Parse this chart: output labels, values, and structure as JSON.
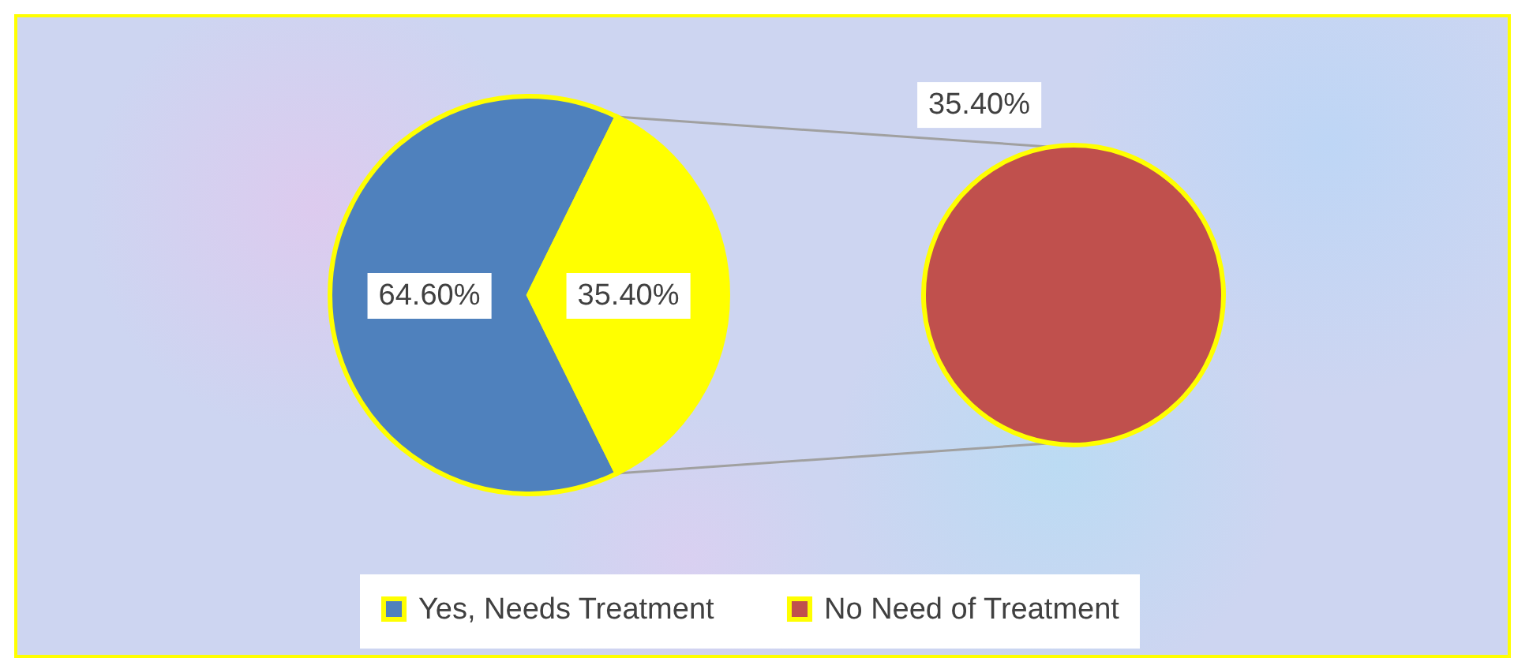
{
  "chart_data": [
    {
      "type": "pie",
      "categories": [
        "Yes, Needs Treatment",
        null
      ],
      "values": [
        64.6,
        35.4
      ],
      "colors": [
        "#4f81bd",
        "#ffff00"
      ],
      "value_labels": [
        "64.60%",
        "35.40%"
      ],
      "legend": "bottom"
    },
    {
      "type": "pie",
      "categories": [
        "No Need of Treatment"
      ],
      "values": [
        35.4
      ],
      "colors": [
        "#c0504d"
      ],
      "value_labels": [
        "35.40%"
      ],
      "legend": "bottom"
    }
  ]
}
